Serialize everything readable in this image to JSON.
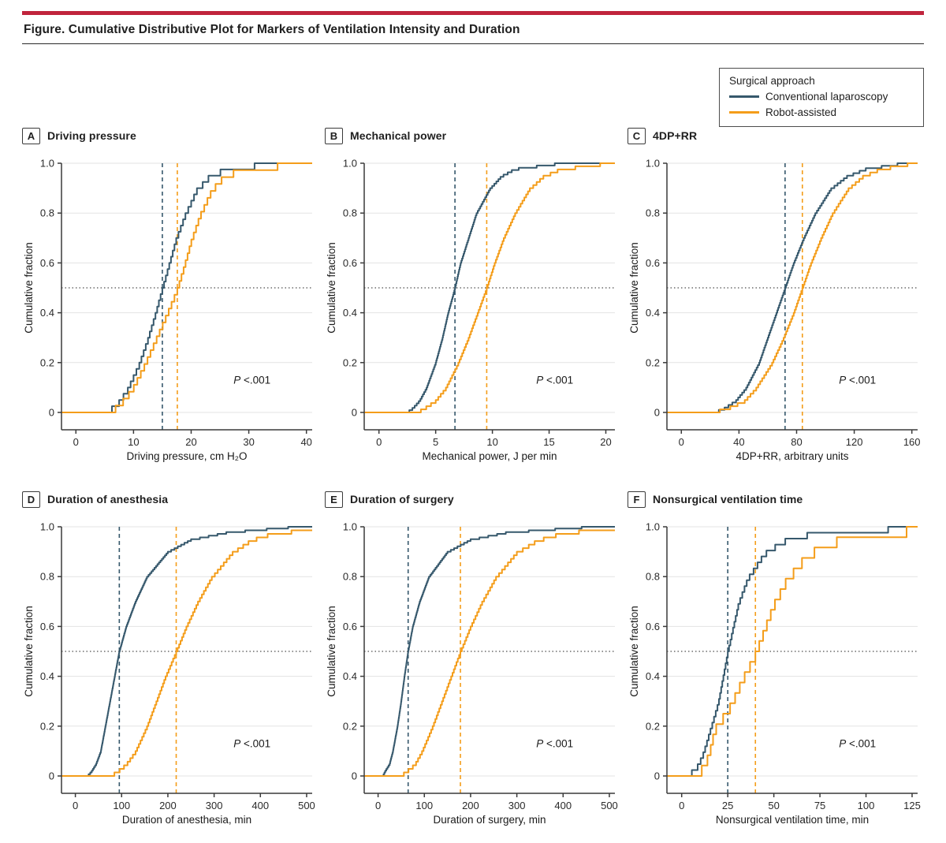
{
  "figure": {
    "title": "Figure. Cumulative Distributive Plot for Markers of Ventilation Intensity and Duration"
  },
  "legend": {
    "title": "Surgical approach",
    "items": [
      {
        "label": "Conventional laparoscopy",
        "color": "#36586C"
      },
      {
        "label": "Robot-assisted",
        "color": "#F49D1A"
      }
    ]
  },
  "colors": {
    "accent_red": "#C0243C",
    "grid": "#E3E3E3",
    "axis": "#3A3A3A",
    "text": "#2A2A2A",
    "median_dot_line": "#222222"
  },
  "chart_data": {
    "type": "ecdf-step-line",
    "ylabel": "Cumulative fraction",
    "yticks": [
      0,
      0.2,
      0.4,
      0.6,
      0.8,
      1.0
    ],
    "ytick_labels": [
      "0",
      "0.2",
      "0.4",
      "0.6",
      "0.8",
      "1.0"
    ],
    "ylim": [
      0,
      1.0
    ],
    "grid": "horizontal only",
    "reference_line_y": 0.5,
    "legend_position": "top-right outside panels",
    "fractions": [
      0,
      0.02,
      0.05,
      0.1,
      0.2,
      0.3,
      0.4,
      0.5,
      0.6,
      0.7,
      0.8,
      0.9,
      0.95,
      0.98,
      1.0
    ],
    "panels": [
      {
        "letter": "A",
        "title": "Driving pressure",
        "xlabel": "Driving pressure, cm H₂O",
        "xticks": [
          0,
          10,
          20,
          30,
          40
        ],
        "xmin": -2.5,
        "xmax": 41,
        "p_label": "P",
        "p_value": "<.001",
        "series": [
          {
            "name": "Conventional laparoscopy",
            "color": "#36586C",
            "median": 15,
            "quantiles": [
              4.5,
              6,
              7.5,
              9,
              11,
              12.5,
              13.8,
              15,
              16.2,
              17.4,
              19,
              21,
              23,
              25.5,
              31
            ],
            "steps": 40
          },
          {
            "name": "Robot-assisted",
            "color": "#F49D1A",
            "median": 17.6,
            "quantiles": [
              5,
              6.5,
              8,
              9.8,
              12,
              13.9,
              15.8,
              17.6,
              18.9,
              20.1,
              21.6,
              23.6,
              25.5,
              28,
              35
            ],
            "steps": 36
          }
        ]
      },
      {
        "letter": "B",
        "title": "Mechanical power",
        "xlabel": "Mechanical power, J per min",
        "xticks": [
          0,
          5,
          10,
          15,
          20
        ],
        "xmin": -1.3,
        "xmax": 20.8,
        "p_label": "P",
        "p_value": "<.001",
        "series": [
          {
            "name": "Conventional laparoscopy",
            "color": "#36586C",
            "median": 6.7,
            "quantiles": [
              2.4,
              3,
              3.6,
              4.2,
              5,
              5.6,
              6.1,
              6.7,
              7.2,
              7.9,
              8.6,
              9.8,
              10.8,
              12,
              15.5
            ],
            "steps": 110
          },
          {
            "name": "Robot-assisted",
            "color": "#F49D1A",
            "median": 9.5,
            "quantiles": [
              3.2,
              4,
              5,
              5.9,
              7,
              7.9,
              8.7,
              9.5,
              10.2,
              11,
              12,
              13.3,
              14.5,
              16,
              19.5
            ],
            "steps": 80
          }
        ]
      },
      {
        "letter": "C",
        "title": "4DP+RR",
        "xlabel": "4DP+RR, arbitrary units",
        "xticks": [
          0,
          40,
          80,
          120,
          160
        ],
        "xmin": -10,
        "xmax": 164,
        "p_label": "P",
        "p_value": "<.001",
        "series": [
          {
            "name": "Conventional laparoscopy",
            "color": "#36586C",
            "median": 72,
            "quantiles": [
              22,
              30,
              38,
              45,
              54,
              60,
              66,
              72,
              78,
              85,
              93,
              104,
              115,
              128,
              150
            ],
            "steps": 100
          },
          {
            "name": "Robot-assisted",
            "color": "#F49D1A",
            "median": 84,
            "quantiles": [
              18,
              32,
              44,
              52,
              63,
              71,
              78,
              84,
              90,
              97,
              105,
              116,
              126,
              138,
              157
            ],
            "steps": 80
          }
        ]
      },
      {
        "letter": "D",
        "title": "Duration of anesthesia",
        "xlabel": "Duration of anesthesia, min",
        "xticks": [
          0,
          100,
          200,
          300,
          400,
          500
        ],
        "xmin": -30,
        "xmax": 512,
        "p_label": "P",
        "p_value": "<.001",
        "series": [
          {
            "name": "Conventional laparoscopy",
            "color": "#36586C",
            "median": 95,
            "quantiles": [
              25,
              35,
              45,
              55,
              65,
              75,
              85,
              95,
              110,
              130,
              155,
              200,
              250,
              330,
              460
            ],
            "steps": 140
          },
          {
            "name": "Robot-assisted",
            "color": "#F49D1A",
            "median": 218,
            "quantiles": [
              70,
              90,
              110,
              130,
              155,
              175,
              195,
              218,
              240,
              265,
              295,
              340,
              380,
              430,
              560
            ],
            "steps": 70
          }
        ]
      },
      {
        "letter": "E",
        "title": "Duration of surgery",
        "xlabel": "Duration of surgery, min",
        "xticks": [
          0,
          100,
          200,
          300,
          400,
          500
        ],
        "xmin": -30,
        "xmax": 512,
        "p_label": "P",
        "p_value": "<.001",
        "series": [
          {
            "name": "Conventional laparoscopy",
            "color": "#36586C",
            "median": 65,
            "quantiles": [
              10,
              15,
              25,
              32,
              42,
              50,
              57,
              65,
              75,
              90,
              110,
              150,
              200,
              280,
              440
            ],
            "steps": 140
          },
          {
            "name": "Robot-assisted",
            "color": "#F49D1A",
            "median": 178,
            "quantiles": [
              45,
              60,
              80,
              95,
              118,
              138,
              158,
              178,
              200,
              225,
              255,
              300,
              345,
              400,
              520
            ],
            "steps": 70
          }
        ]
      },
      {
        "letter": "F",
        "title": "Nonsurgical ventilation time",
        "xlabel": "Nonsurgical ventilation time, min",
        "xticks": [
          0,
          25,
          50,
          75,
          100,
          125
        ],
        "xmin": -8,
        "xmax": 128,
        "p_label": "P",
        "p_value": "<.001",
        "series": [
          {
            "name": "Conventional laparoscopy",
            "color": "#36586C",
            "median": 25,
            "quantiles": [
              3,
              5,
              9,
              12,
              16,
              20,
              22.5,
              25,
              28,
              31,
              36,
              45,
              55,
              70,
              112
            ],
            "steps": 42
          },
          {
            "name": "Robot-assisted",
            "color": "#F49D1A",
            "median": 40,
            "quantiles": [
              5,
              8,
              12,
              15,
              18,
              27,
              33,
              40,
              45,
              50,
              57,
              68,
              80,
              95,
              122
            ],
            "steps": 24
          }
        ]
      }
    ]
  }
}
